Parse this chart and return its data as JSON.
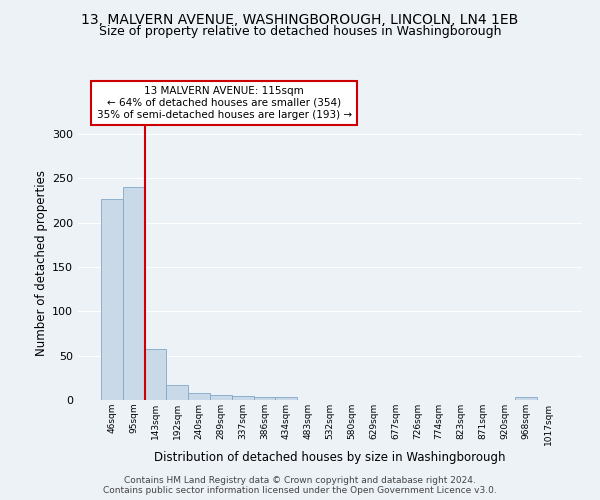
{
  "title_line1": "13, MALVERN AVENUE, WASHINGBOROUGH, LINCOLN, LN4 1EB",
  "title_line2": "Size of property relative to detached houses in Washingborough",
  "xlabel": "Distribution of detached houses by size in Washingborough",
  "ylabel": "Number of detached properties",
  "categories": [
    "46sqm",
    "95sqm",
    "143sqm",
    "192sqm",
    "240sqm",
    "289sqm",
    "337sqm",
    "386sqm",
    "434sqm",
    "483sqm",
    "532sqm",
    "580sqm",
    "629sqm",
    "677sqm",
    "726sqm",
    "774sqm",
    "823sqm",
    "871sqm",
    "920sqm",
    "968sqm",
    "1017sqm"
  ],
  "values": [
    227,
    240,
    58,
    17,
    8,
    6,
    5,
    3,
    3,
    0,
    0,
    0,
    0,
    0,
    0,
    0,
    0,
    0,
    0,
    3,
    0
  ],
  "bar_color": "#c9d9e8",
  "bar_edge_color": "#7fa8c9",
  "vline_color": "#cc0000",
  "annotation_text": "13 MALVERN AVENUE: 115sqm\n← 64% of detached houses are smaller (354)\n35% of semi-detached houses are larger (193) →",
  "annotation_box_color": "#ffffff",
  "annotation_box_edge": "#cc0000",
  "ylim": [
    0,
    310
  ],
  "yticks": [
    0,
    50,
    100,
    150,
    200,
    250,
    300
  ],
  "footer_text": "Contains HM Land Registry data © Crown copyright and database right 2024.\nContains public sector information licensed under the Open Government Licence v3.0.",
  "bg_color": "#edf2f7",
  "grid_color": "#ffffff",
  "title_fontsize": 10,
  "subtitle_fontsize": 9,
  "axis_label_fontsize": 8.5
}
